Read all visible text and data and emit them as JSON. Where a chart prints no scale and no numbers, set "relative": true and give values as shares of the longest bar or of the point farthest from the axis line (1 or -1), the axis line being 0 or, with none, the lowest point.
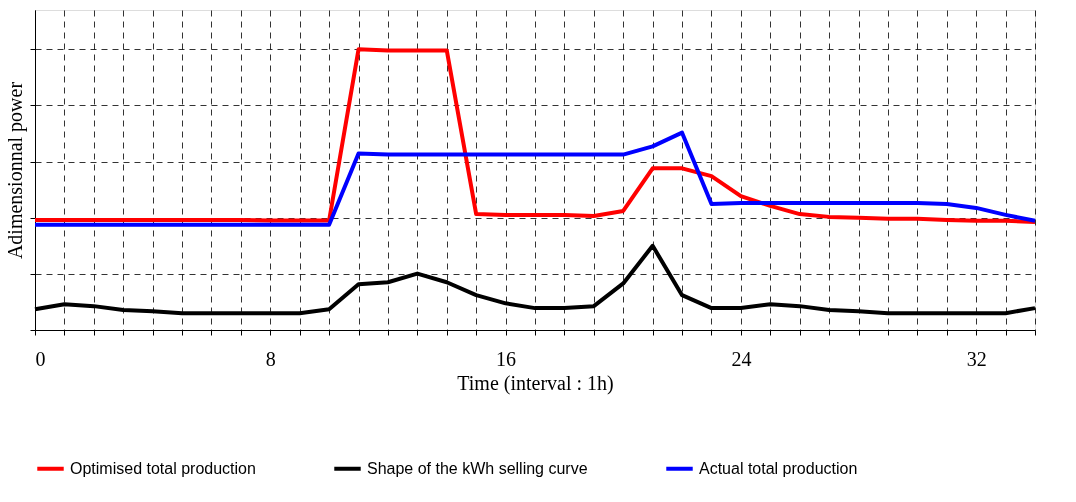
{
  "chart_data": {
    "type": "line",
    "xlabel": "Time (interval : 1h)",
    "ylabel": "Adimensionnal power",
    "relative": true,
    "x": [
      0,
      1,
      2,
      3,
      4,
      5,
      6,
      7,
      8,
      9,
      10,
      11,
      12,
      13,
      14,
      15,
      16,
      17,
      18,
      19,
      20,
      21,
      22,
      23,
      24,
      25,
      26,
      27,
      28,
      29,
      30,
      31,
      32,
      33,
      34
    ],
    "xlim": [
      0,
      34
    ],
    "xticks": [
      0,
      {
        "value": 1,
        "label": null
      },
      {
        "value": 2,
        "label": null
      },
      {
        "value": 3,
        "label": null
      },
      {
        "value": 4,
        "label": null
      },
      {
        "value": 5,
        "label": null
      },
      {
        "value": 6,
        "label": null
      },
      {
        "value": 7,
        "label": null
      },
      8,
      {
        "value": 9,
        "label": null
      },
      {
        "value": 10,
        "label": null
      },
      {
        "value": 11,
        "label": null
      },
      {
        "value": 12,
        "label": null
      },
      {
        "value": 13,
        "label": null
      },
      {
        "value": 14,
        "label": null
      },
      {
        "value": 15,
        "label": null
      },
      16,
      {
        "value": 17,
        "label": null
      },
      {
        "value": 18,
        "label": null
      },
      {
        "value": 19,
        "label": null
      },
      {
        "value": 20,
        "label": null
      },
      {
        "value": 21,
        "label": null
      },
      {
        "value": 22,
        "label": null
      },
      {
        "value": 23,
        "label": null
      },
      24,
      {
        "value": 25,
        "label": null
      },
      {
        "value": 26,
        "label": null
      },
      {
        "value": 27,
        "label": null
      },
      {
        "value": 28,
        "label": null
      },
      {
        "value": 29,
        "label": null
      },
      {
        "value": 30,
        "label": null
      },
      {
        "value": 31,
        "label": null
      },
      32,
      {
        "value": 33,
        "label": null
      },
      {
        "value": 34,
        "label": null
      }
    ],
    "series": [
      {
        "name": "Optimised total production",
        "color": "#ff0000",
        "values": [
          0.392,
          0.392,
          0.392,
          0.392,
          0.392,
          0.392,
          0.392,
          0.392,
          0.39,
          0.39,
          0.39,
          1.0,
          0.996,
          0.996,
          0.996,
          0.413,
          0.41,
          0.41,
          0.41,
          0.406,
          0.424,
          0.576,
          0.576,
          0.548,
          0.477,
          0.442,
          0.413,
          0.403,
          0.4,
          0.396,
          0.396,
          0.392,
          0.389,
          0.389,
          0.385
        ]
      },
      {
        "name": "Shape of the kWh selling curve",
        "color": "#000000",
        "values": [
          0.074,
          0.092,
          0.085,
          0.071,
          0.067,
          0.06,
          0.06,
          0.06,
          0.06,
          0.06,
          0.074,
          0.163,
          0.17,
          0.201,
          0.17,
          0.124,
          0.095,
          0.078,
          0.078,
          0.085,
          0.166,
          0.3,
          0.124,
          0.078,
          0.078,
          0.092,
          0.085,
          0.071,
          0.067,
          0.06,
          0.06,
          0.06,
          0.06,
          0.06,
          0.078
        ]
      },
      {
        "name": "Actual total production",
        "color": "#0000ff",
        "values": [
          0.375,
          0.375,
          0.375,
          0.375,
          0.375,
          0.375,
          0.375,
          0.375,
          0.375,
          0.375,
          0.375,
          0.629,
          0.625,
          0.625,
          0.625,
          0.625,
          0.625,
          0.625,
          0.625,
          0.625,
          0.625,
          0.654,
          0.703,
          0.449,
          0.452,
          0.452,
          0.452,
          0.452,
          0.452,
          0.452,
          0.452,
          0.449,
          0.435,
          0.41,
          0.389
        ]
      }
    ],
    "grid": true,
    "legend": "bottom",
    "line_style": "solid",
    "marker": "none"
  }
}
